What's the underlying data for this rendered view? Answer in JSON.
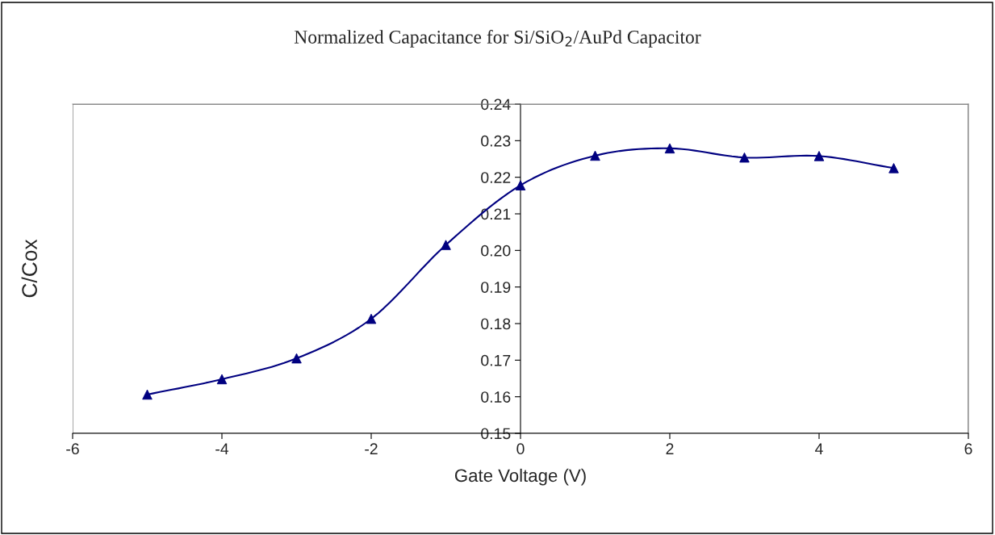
{
  "chart_data": {
    "type": "line",
    "title": "Normalized Capacitance for Si/SiO$_{2}$/AuPd Capacitor",
    "xlabel": "Gate Voltage (V)",
    "ylabel": "C/Cox",
    "x": [
      -5,
      -4,
      -3,
      -2,
      -1,
      0,
      1,
      2,
      3,
      4,
      5
    ],
    "series": [
      {
        "color": "#000080",
        "values": [
          0.1606,
          0.1648,
          0.1705,
          0.1813,
          0.2015,
          0.2178,
          0.2259,
          0.2279,
          0.2254,
          0.2258,
          0.2225
        ]
      }
    ],
    "xlim": [
      -6,
      6
    ],
    "xticks": [
      -6,
      -4,
      -2,
      0,
      2,
      4,
      6
    ],
    "ylim": [
      0.15,
      0.24
    ],
    "yticks": [
      {
        "value": 0.15,
        "label": "0.15"
      },
      {
        "value": 0.16,
        "label": "0.16"
      },
      {
        "value": 0.17,
        "label": "0.17"
      },
      {
        "value": 0.18,
        "label": "0.18"
      },
      {
        "value": 0.19,
        "label": "0.19"
      },
      {
        "value": 0.2,
        "label": "0.20"
      },
      {
        "value": 0.21,
        "label": "0.21"
      },
      {
        "value": 0.22,
        "label": "0.22"
      },
      {
        "value": 0.23,
        "label": "0.23"
      },
      {
        "value": 0.24,
        "label": "0.24"
      }
    ],
    "grid": false,
    "legend": false,
    "marker": "triangle",
    "line_style": "solid"
  }
}
